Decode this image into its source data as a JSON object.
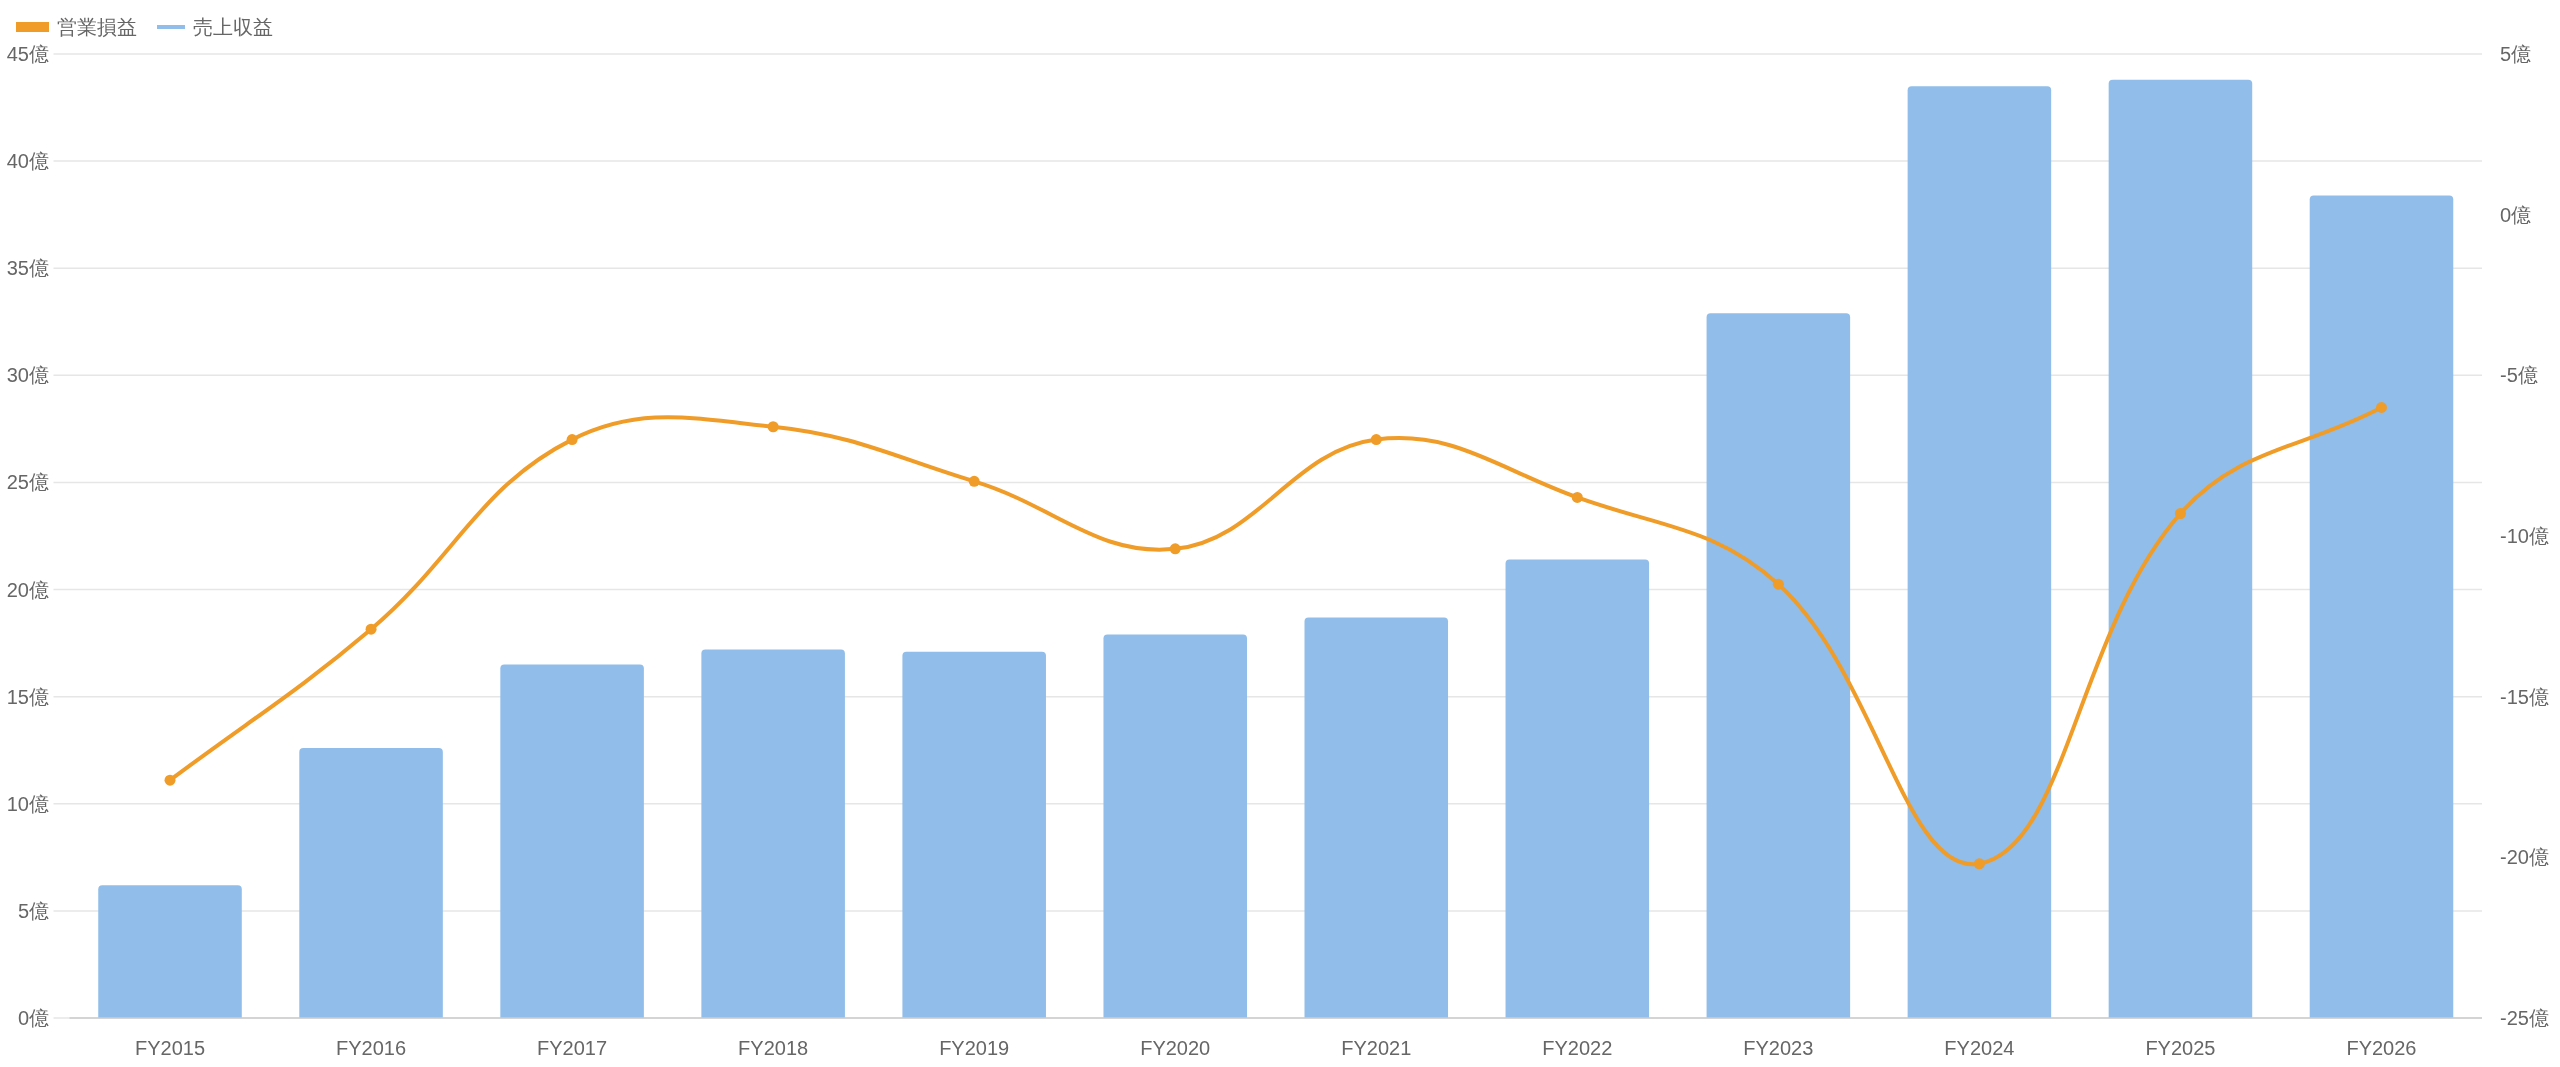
{
  "chart_data": {
    "type": "bar",
    "categories": [
      "FY2015",
      "FY2016",
      "FY2017",
      "FY2018",
      "FY2019",
      "FY2020",
      "FY2021",
      "FY2022",
      "FY2023",
      "FY2024",
      "FY2025",
      "FY2026"
    ],
    "series": [
      {
        "name": "営業損益",
        "type": "line",
        "axis": "y2",
        "color": "#f09c28",
        "values": [
          -17.6,
          -12.9,
          -7.0,
          -6.6,
          -8.3,
          -10.4,
          -7.0,
          -8.8,
          -11.5,
          -20.2,
          -9.3,
          -6.0
        ]
      },
      {
        "name": "売上収益",
        "color": "#90bde9",
        "values": [
          6.2,
          12.6,
          16.5,
          17.2,
          17.1,
          17.9,
          18.7,
          21.4,
          32.9,
          43.5,
          43.8,
          38.4
        ]
      }
    ],
    "ylim": [
      0,
      45
    ],
    "yticks": [
      {
        "value": 0,
        "label": "0億"
      },
      {
        "value": 5,
        "label": "5億"
      },
      {
        "value": 10,
        "label": "10億"
      },
      {
        "value": 15,
        "label": "15億"
      },
      {
        "value": 20,
        "label": "20億"
      },
      {
        "value": 25,
        "label": "25億"
      },
      {
        "value": 30,
        "label": "30億"
      },
      {
        "value": 35,
        "label": "35億"
      },
      {
        "value": 40,
        "label": "40億"
      },
      {
        "value": 45,
        "label": "45億"
      }
    ],
    "y2lim": [
      -25,
      5
    ],
    "y2ticks": [
      {
        "value": -25,
        "label": "-25億"
      },
      {
        "value": -20,
        "label": "-20億"
      },
      {
        "value": -15,
        "label": "-15億"
      },
      {
        "value": -10,
        "label": "-10億"
      },
      {
        "value": -5,
        "label": "-5億"
      },
      {
        "value": 0,
        "label": "0億"
      },
      {
        "value": 5,
        "label": "5億"
      }
    ],
    "grid": "y",
    "legend": "top left",
    "marker": "circle",
    "line_style": "solid"
  }
}
